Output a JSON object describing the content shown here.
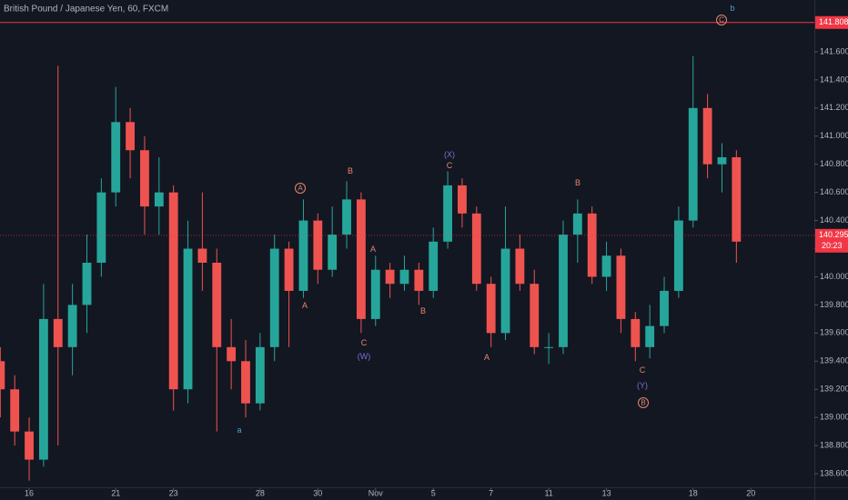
{
  "chart_data": {
    "type": "candlestick",
    "title": "British Pound / Japanese Yen, 60, FXCM",
    "up_color": "#26a69a",
    "down_color": "#ef5350",
    "grid": false,
    "xlim": [
      -1.01,
      27.2
    ],
    "ylim": [
      138.497,
      141.968
    ],
    "xticks": [
      {
        "value": 0,
        "label": "16"
      },
      {
        "value": 3,
        "label": "21"
      },
      {
        "value": 5,
        "label": "23"
      },
      {
        "value": 8,
        "label": "28"
      },
      {
        "value": 10,
        "label": "30"
      },
      {
        "value": 12,
        "label": "Nov"
      },
      {
        "value": 14,
        "label": "5"
      },
      {
        "value": 16,
        "label": "7"
      },
      {
        "value": 18,
        "label": "11"
      },
      {
        "value": 20,
        "label": "13"
      },
      {
        "value": 23,
        "label": "18"
      },
      {
        "value": 25,
        "label": "20"
      }
    ],
    "yticks": [
      {
        "value": 138.6,
        "label": "138.600"
      },
      {
        "value": 138.8,
        "label": "138.800"
      },
      {
        "value": 139.0,
        "label": "139.000"
      },
      {
        "value": 139.2,
        "label": "139.200"
      },
      {
        "value": 139.4,
        "label": "139.400"
      },
      {
        "value": 139.6,
        "label": "139.600"
      },
      {
        "value": 139.8,
        "label": "139.800"
      },
      {
        "value": 140.0,
        "label": "140.000"
      },
      {
        "value": 140.2,
        "label": "140.200"
      },
      {
        "value": 140.4,
        "label": "140.400"
      },
      {
        "value": 140.6,
        "label": "140.600"
      },
      {
        "value": 140.8,
        "label": "140.800"
      },
      {
        "value": 141.0,
        "label": "141.000"
      },
      {
        "value": 141.2,
        "label": "141.200"
      },
      {
        "value": 141.4,
        "label": "141.400"
      },
      {
        "value": 141.6,
        "label": "141.600"
      }
    ],
    "x": [
      -1,
      -0.5,
      0,
      0.5,
      1,
      1.5,
      2,
      2.5,
      3,
      3.5,
      4,
      4.5,
      5,
      5.5,
      6,
      6.5,
      7,
      7.5,
      8,
      8.5,
      9,
      9.5,
      10,
      10.5,
      11,
      11.5,
      12,
      12.5,
      13,
      13.5,
      14,
      14.5,
      15,
      15.5,
      16,
      16.5,
      17,
      17.5,
      18,
      18.5,
      19,
      19.5,
      20,
      20.5,
      21,
      21.5,
      22,
      22.5,
      23,
      23.5,
      24,
      24.5
    ],
    "open": [
      139.4,
      139.2,
      138.9,
      138.7,
      139.7,
      139.5,
      139.8,
      140.1,
      140.6,
      141.1,
      140.9,
      140.5,
      140.6,
      139.2,
      140.2,
      140.1,
      139.5,
      139.4,
      139.1,
      139.5,
      140.2,
      139.9,
      140.4,
      140.05,
      140.3,
      140.55,
      139.7,
      140.05,
      139.95,
      140.05,
      139.9,
      140.25,
      140.65,
      140.45,
      139.95,
      139.6,
      140.2,
      139.95,
      139.5,
      139.5,
      140.3,
      140.45,
      140.0,
      140.15,
      139.7,
      139.5,
      139.65,
      139.9,
      140.4,
      141.2,
      140.8,
      140.85
    ],
    "high": [
      139.5,
      139.3,
      139.0,
      139.95,
      141.5,
      139.95,
      140.3,
      140.7,
      141.35,
      141.2,
      141.0,
      140.85,
      140.65,
      140.4,
      140.6,
      140.2,
      139.7,
      139.55,
      139.6,
      140.3,
      140.25,
      140.55,
      140.45,
      140.5,
      140.68,
      140.6,
      140.15,
      140.1,
      140.15,
      140.1,
      140.35,
      140.75,
      140.7,
      140.5,
      140.0,
      140.5,
      140.3,
      140.05,
      139.6,
      140.4,
      140.55,
      140.5,
      140.25,
      140.2,
      139.75,
      139.8,
      140.0,
      140.5,
      141.57,
      141.3,
      140.95,
      140.9
    ],
    "low": [
      139.0,
      138.8,
      138.55,
      138.65,
      138.8,
      139.3,
      139.6,
      140.0,
      140.5,
      140.7,
      140.3,
      140.3,
      139.05,
      139.1,
      139.9,
      138.9,
      139.2,
      139.0,
      139.05,
      139.4,
      139.5,
      139.85,
      139.95,
      140.0,
      140.2,
      139.6,
      139.65,
      139.85,
      139.9,
      139.8,
      139.85,
      140.2,
      140.35,
      139.9,
      139.5,
      139.55,
      139.9,
      139.45,
      139.38,
      139.45,
      140.1,
      139.95,
      139.9,
      139.6,
      139.4,
      139.42,
      139.6,
      139.85,
      140.35,
      140.7,
      140.6,
      140.1
    ],
    "close": [
      139.2,
      138.9,
      138.7,
      139.7,
      139.5,
      139.8,
      140.1,
      140.6,
      141.1,
      140.9,
      140.5,
      140.6,
      139.2,
      140.2,
      140.1,
      139.5,
      139.4,
      139.1,
      139.5,
      140.2,
      139.9,
      140.4,
      140.05,
      140.3,
      140.55,
      139.7,
      140.05,
      139.95,
      140.05,
      139.9,
      140.25,
      140.65,
      140.45,
      139.95,
      139.6,
      140.2,
      139.95,
      139.5,
      139.5,
      140.3,
      140.45,
      140.0,
      140.15,
      139.7,
      139.5,
      139.65,
      139.9,
      140.4,
      141.2,
      140.8,
      140.85,
      140.25
    ],
    "hline": {
      "value": 141.808,
      "label": "141.808",
      "color": "#f23645"
    },
    "last_price": {
      "value": 140.295,
      "label": "140.295",
      "color": "#f23645"
    },
    "countdown": "20:23",
    "annotations": [
      {
        "text": "b",
        "color": "#4aa3c9",
        "circled": false
      },
      {
        "text": "C",
        "color": "#e8866a",
        "circled": true
      },
      {
        "text": "A",
        "color": "#e8866a",
        "circled": true
      },
      {
        "text": "B",
        "color": "#e8866a",
        "circled": false
      },
      {
        "text": "(X)",
        "color": "#7b6fd0",
        "circled": false
      },
      {
        "text": "C",
        "color": "#e8866a",
        "circled": false
      },
      {
        "text": "B",
        "color": "#e8866a",
        "circled": false
      },
      {
        "text": "A",
        "color": "#e8866a",
        "circled": false
      },
      {
        "text": "A",
        "color": "#e8866a",
        "circled": false
      },
      {
        "text": "B",
        "color": "#e8866a",
        "circled": false
      },
      {
        "text": "C",
        "color": "#e8866a",
        "circled": false
      },
      {
        "text": "(W)",
        "color": "#7b6fd0",
        "circled": false
      },
      {
        "text": "A",
        "color": "#e8866a",
        "circled": false
      },
      {
        "text": "C",
        "color": "#e8866a",
        "circled": false
      },
      {
        "text": "(Y)",
        "color": "#7b6fd0",
        "circled": false
      },
      {
        "text": "B",
        "color": "#e8866a",
        "circled": true
      },
      {
        "text": "a",
        "color": "#4aa3c9",
        "circled": false
      }
    ]
  }
}
